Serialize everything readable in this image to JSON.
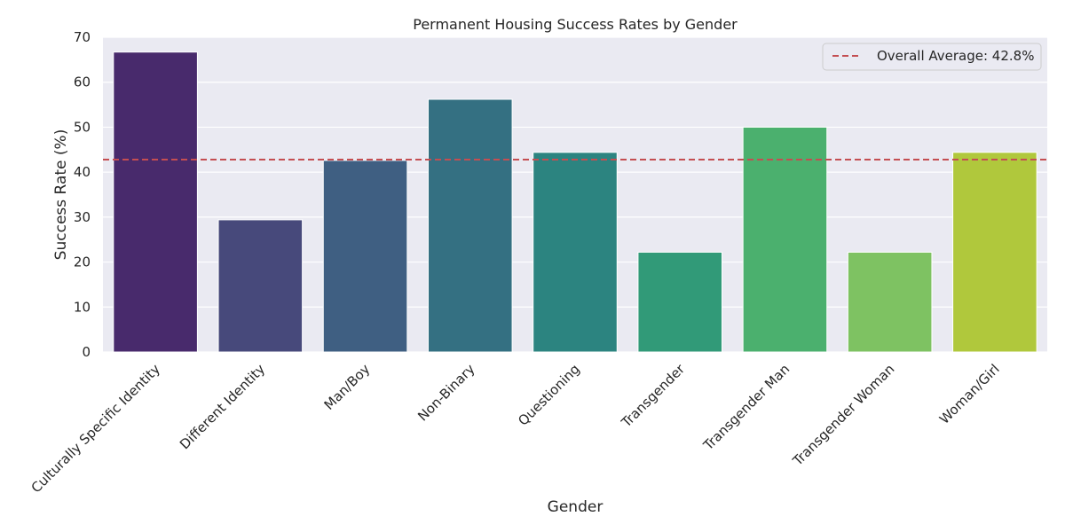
{
  "chart_data": {
    "type": "bar",
    "title": "Permanent Housing Success Rates by Gender",
    "xlabel": "Gender",
    "ylabel": "Success Rate (%)",
    "categories": [
      "Culturally Specific Identity",
      "Different Identity",
      "Man/Boy",
      "Non-Binary",
      "Questioning",
      "Transgender",
      "Transgender Man",
      "Transgender Woman",
      "Woman/Girl"
    ],
    "values": [
      66.7,
      29.4,
      42.6,
      56.2,
      44.4,
      22.2,
      50.0,
      22.2,
      44.4
    ],
    "colors": [
      "#482a6c",
      "#47497b",
      "#3f5f82",
      "#347082",
      "#2c8480",
      "#319a78",
      "#4bb06e",
      "#7ec262",
      "#b0c83c"
    ],
    "ylim": [
      0,
      70
    ],
    "yticks": [
      0,
      10,
      20,
      30,
      40,
      50,
      60,
      70
    ],
    "grid": true,
    "reference_line": {
      "value": 42.8,
      "label": "Overall Average: 42.8%",
      "color": "#c44e52",
      "style": "dashed"
    },
    "legend_position": "top-right",
    "background": "#eaeaf2"
  }
}
